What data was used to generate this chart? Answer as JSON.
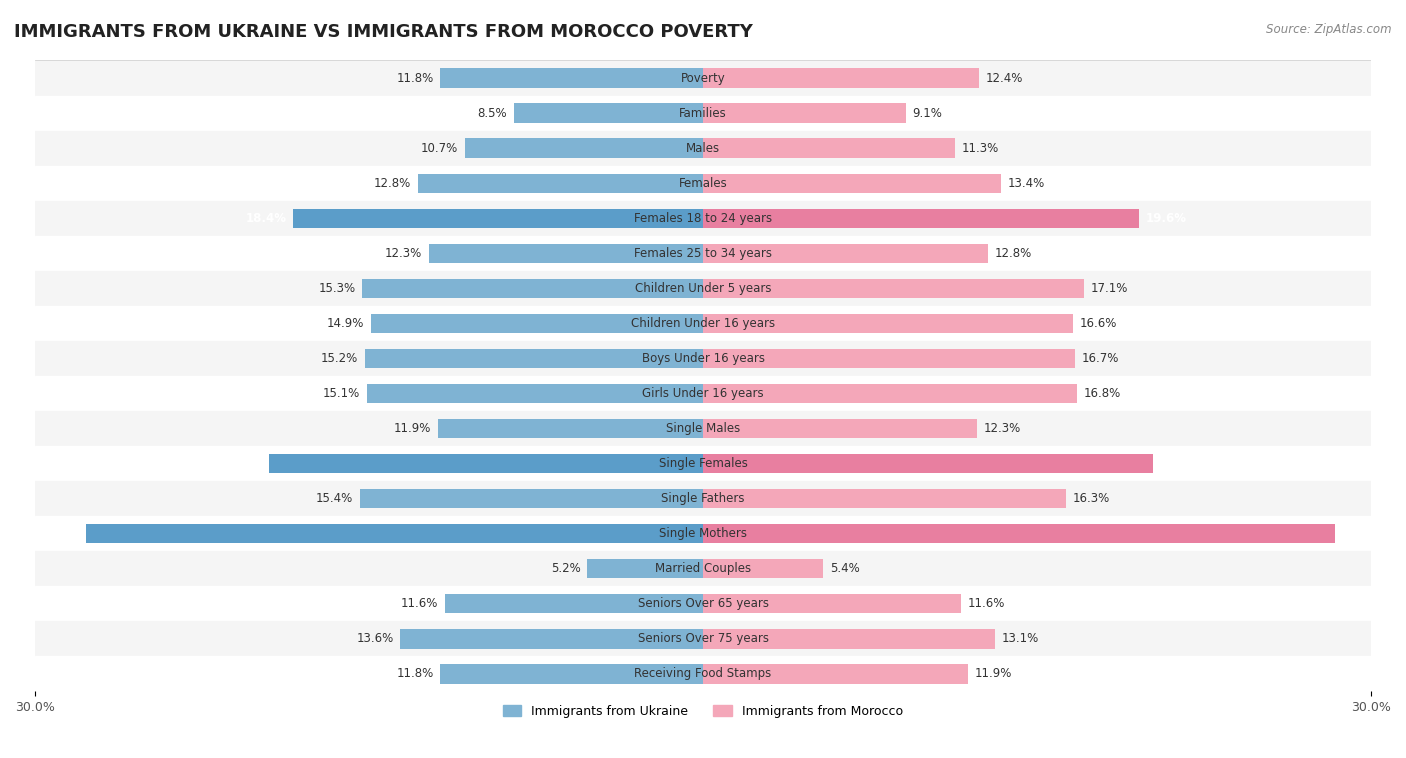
{
  "title": "IMMIGRANTS FROM UKRAINE VS IMMIGRANTS FROM MOROCCO POVERTY",
  "source": "Source: ZipAtlas.com",
  "categories": [
    "Poverty",
    "Families",
    "Males",
    "Females",
    "Females 18 to 24 years",
    "Females 25 to 34 years",
    "Children Under 5 years",
    "Children Under 16 years",
    "Boys Under 16 years",
    "Girls Under 16 years",
    "Single Males",
    "Single Females",
    "Single Fathers",
    "Single Mothers",
    "Married Couples",
    "Seniors Over 65 years",
    "Seniors Over 75 years",
    "Receiving Food Stamps"
  ],
  "ukraine_values": [
    11.8,
    8.5,
    10.7,
    12.8,
    18.4,
    12.3,
    15.3,
    14.9,
    15.2,
    15.1,
    11.9,
    19.5,
    15.4,
    27.7,
    5.2,
    11.6,
    13.6,
    11.8
  ],
  "morocco_values": [
    12.4,
    9.1,
    11.3,
    13.4,
    19.6,
    12.8,
    17.1,
    16.6,
    16.7,
    16.8,
    12.3,
    20.2,
    16.3,
    28.4,
    5.4,
    11.6,
    13.1,
    11.9
  ],
  "ukraine_color": "#7fb3d3",
  "morocco_color": "#f4a7b9",
  "ukraine_highlight_color": "#5b9dc9",
  "morocco_highlight_color": "#e87fa0",
  "highlight_rows": [
    4,
    11,
    13
  ],
  "background_color": "#ffffff",
  "row_alt_color": "#f5f5f5",
  "row_main_color": "#ffffff",
  "axis_limit": 30.0,
  "legend_ukraine": "Immigrants from Ukraine",
  "legend_morocco": "Immigrants from Morocco"
}
